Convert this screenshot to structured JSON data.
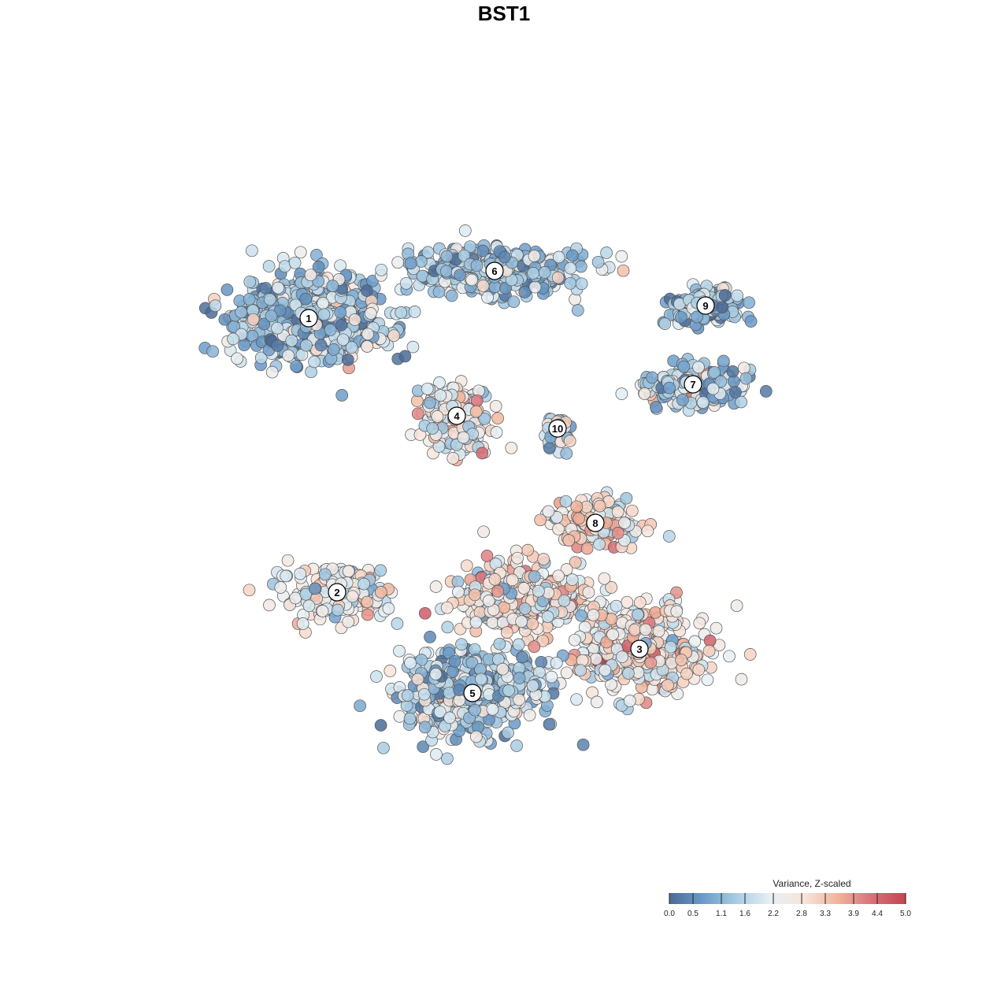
{
  "title": "BST1",
  "chart_data": {
    "type": "scatter",
    "title": "BST1",
    "xlabel": "",
    "ylabel": "",
    "grid": false,
    "point_style": {
      "stroke": "#555555",
      "opacity": 0.85
    },
    "clusters": [
      {
        "label": "1",
        "x": -6.2,
        "y": 5.9,
        "mean_value": 1.4,
        "spread": [
          1.5,
          0.9
        ],
        "count": 700
      },
      {
        "label": "6",
        "x": -0.3,
        "y": 7.4,
        "mean_value": 1.5,
        "spread": [
          1.8,
          0.5
        ],
        "count": 380
      },
      {
        "label": "9",
        "x": 6.4,
        "y": 6.3,
        "mean_value": 1.3,
        "spread": [
          0.9,
          0.45
        ],
        "count": 130
      },
      {
        "label": "7",
        "x": 6.0,
        "y": 3.8,
        "mean_value": 1.4,
        "spread": [
          1.0,
          0.45
        ],
        "count": 220
      },
      {
        "label": "4",
        "x": -1.5,
        "y": 2.8,
        "mean_value": 2.4,
        "spread": [
          0.7,
          0.65
        ],
        "count": 260
      },
      {
        "label": "10",
        "x": 1.7,
        "y": 2.4,
        "mean_value": 1.6,
        "spread": [
          0.3,
          0.35
        ],
        "count": 40
      },
      {
        "label": "8",
        "x": 2.9,
        "y": -0.6,
        "mean_value": 2.8,
        "spread": [
          1.0,
          0.55
        ],
        "count": 150
      },
      {
        "label": "2",
        "x": -5.3,
        "y": -2.8,
        "mean_value": 2.4,
        "spread": [
          1.1,
          0.7
        ],
        "count": 170
      },
      {
        "label": "3",
        "x": 4.3,
        "y": -4.6,
        "mean_value": 2.7,
        "spread": [
          1.4,
          0.9
        ],
        "count": 380
      },
      {
        "label": "5",
        "x": -1.0,
        "y": -6.0,
        "mean_value": 1.6,
        "spread": [
          1.5,
          0.95
        ],
        "count": 480
      },
      {
        "label": "",
        "x": 0.6,
        "y": -3.0,
        "mean_value": 2.6,
        "spread": [
          1.4,
          0.7
        ],
        "count": 420
      }
    ],
    "xlim": [
      -12,
      12
    ],
    "ylim": [
      -12,
      12
    ],
    "legend": {
      "title": "Variance, Z-scaled",
      "placement": "bottom-right",
      "ticks": [
        "0.0",
        "0.5",
        "1.1",
        "1.6",
        "2.2",
        "2.8",
        "3.3",
        "3.9",
        "4.4",
        "5.0"
      ],
      "tick_values": [
        0.0,
        0.5,
        1.1,
        1.6,
        2.2,
        2.8,
        3.3,
        3.9,
        4.4,
        5.0
      ],
      "range": [
        0,
        5
      ],
      "colors": [
        "#4a6b96",
        "#6b9bc9",
        "#a9cde3",
        "#e6f0f5",
        "#f7e4da",
        "#f0b49a",
        "#d9707a",
        "#c2454f"
      ]
    }
  }
}
